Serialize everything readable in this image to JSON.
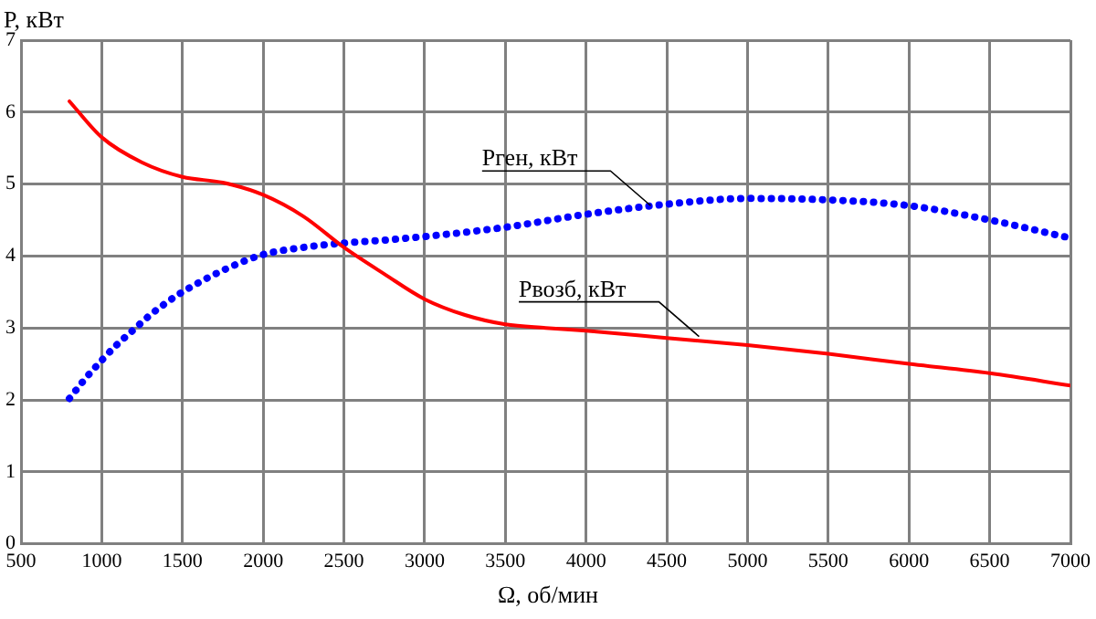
{
  "chart_data": {
    "type": "line",
    "xlabel": "Ω, об/мин",
    "ylabel": "P, кВт",
    "xlim": [
      500,
      7000
    ],
    "xticks": [
      500,
      1000,
      1500,
      2000,
      2500,
      3000,
      3500,
      4000,
      4500,
      5000,
      5500,
      6000,
      6500,
      7000
    ],
    "ylim": [
      0,
      7
    ],
    "yticks": [
      0,
      1,
      2,
      3,
      4,
      5,
      6,
      7
    ],
    "grid": true,
    "legend": false,
    "series": [
      {
        "color": "#ff0000",
        "line_style": "solid",
        "x": [
          800,
          1000,
          1250,
          1500,
          1750,
          2000,
          2250,
          2500,
          2750,
          3000,
          3250,
          3500,
          3750,
          4000,
          4500,
          5000,
          5500,
          6000,
          6500,
          7000
        ],
        "values": [
          6.15,
          5.65,
          5.3,
          5.1,
          5.02,
          4.85,
          4.55,
          4.12,
          3.75,
          3.4,
          3.18,
          3.05,
          3.0,
          2.96,
          2.86,
          2.76,
          2.64,
          2.5,
          2.37,
          2.2
        ]
      },
      {
        "color": "#0000ff",
        "line_style": "dotted",
        "x": [
          800,
          900,
          1000,
          1100,
          1200,
          1300,
          1400,
          1500,
          1750,
          2000,
          2250,
          2500,
          2750,
          3000,
          3500,
          4000,
          4500,
          5000,
          5500,
          6000,
          6500,
          7000
        ],
        "values": [
          2.02,
          2.3,
          2.55,
          2.78,
          2.98,
          3.18,
          3.35,
          3.5,
          3.8,
          4.02,
          4.12,
          4.18,
          4.22,
          4.27,
          4.4,
          4.58,
          4.72,
          4.8,
          4.78,
          4.7,
          4.5,
          4.25
        ]
      }
    ],
    "annotations": [
      {
        "text": "Pген, кВт",
        "x": 4400,
        "y": 4.7
      },
      {
        "text": "Pвозб, кВт",
        "x": 4700,
        "y": 2.88
      }
    ]
  }
}
